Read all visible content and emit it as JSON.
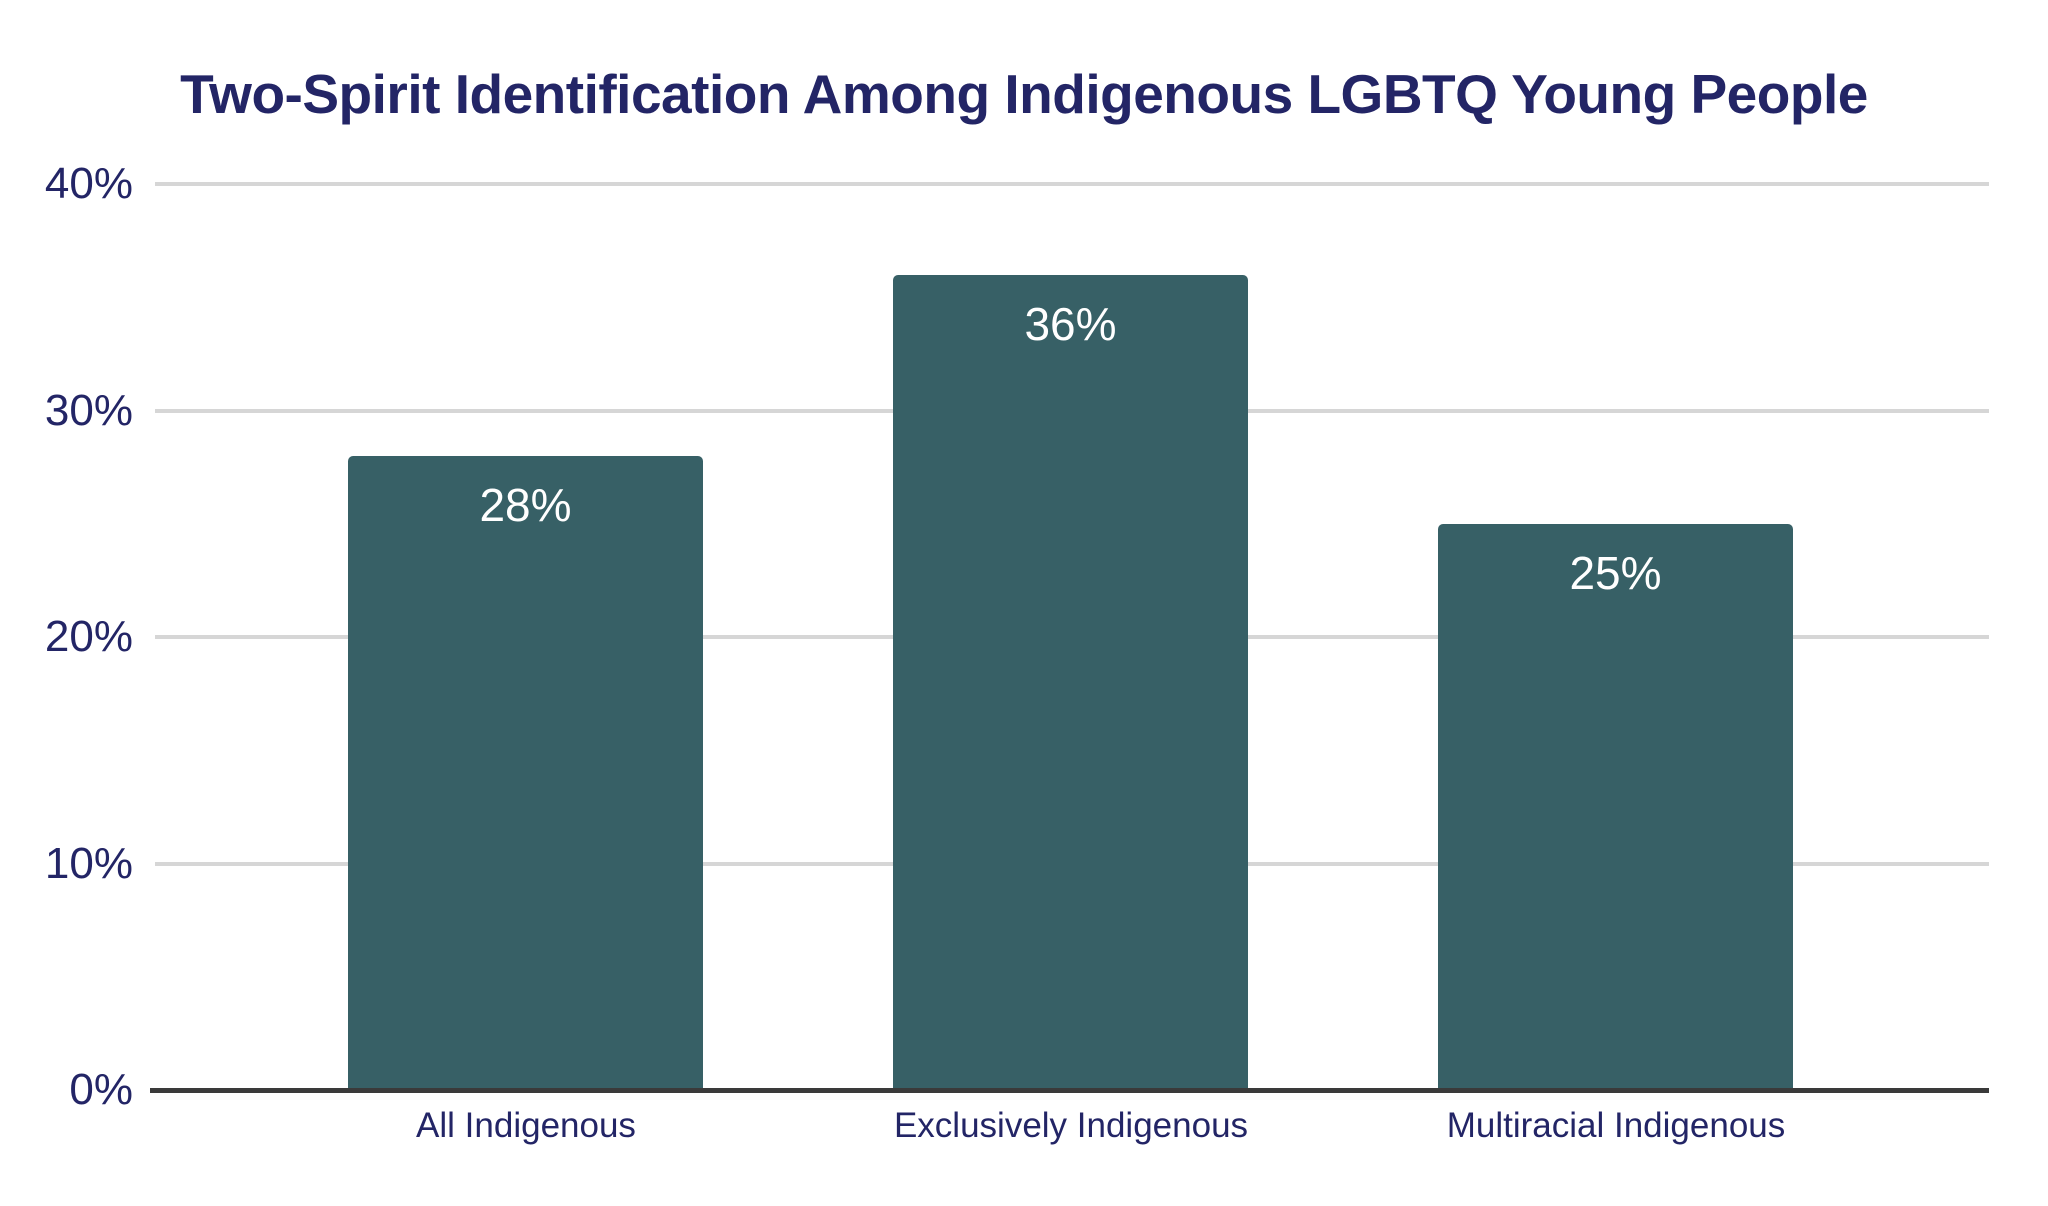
{
  "title": "Two-Spirit Identification Among Indigenous LGBTQ Young People",
  "chart_data": {
    "type": "bar",
    "title": "Two-Spirit Identification Among Indigenous LGBTQ Young People",
    "categories": [
      "All Indigenous",
      "Exclusively Indigenous",
      "Multiracial Indigenous"
    ],
    "values": [
      28,
      36,
      25
    ],
    "value_labels": [
      "28%",
      "36%",
      "25%"
    ],
    "xlabel": "",
    "ylabel": "",
    "ylim": [
      0,
      40
    ],
    "y_ticks": [
      {
        "value": 40,
        "label": "40%"
      },
      {
        "value": 30,
        "label": "30%"
      },
      {
        "value": 20,
        "label": "20%"
      },
      {
        "value": 10,
        "label": "10%"
      },
      {
        "value": 0,
        "label": "0%"
      }
    ],
    "grid": "horizontal",
    "legend": "none",
    "data_labels_position": "inside-top",
    "colors": {
      "bar": "#376066",
      "title_text": "#232566",
      "axis_text": "#232566",
      "category_text": "#232566",
      "data_label_text": "#ffffff",
      "gridline": "#d6d6d6",
      "baseline": "#3a3a3a",
      "background": "#ffffff"
    }
  }
}
